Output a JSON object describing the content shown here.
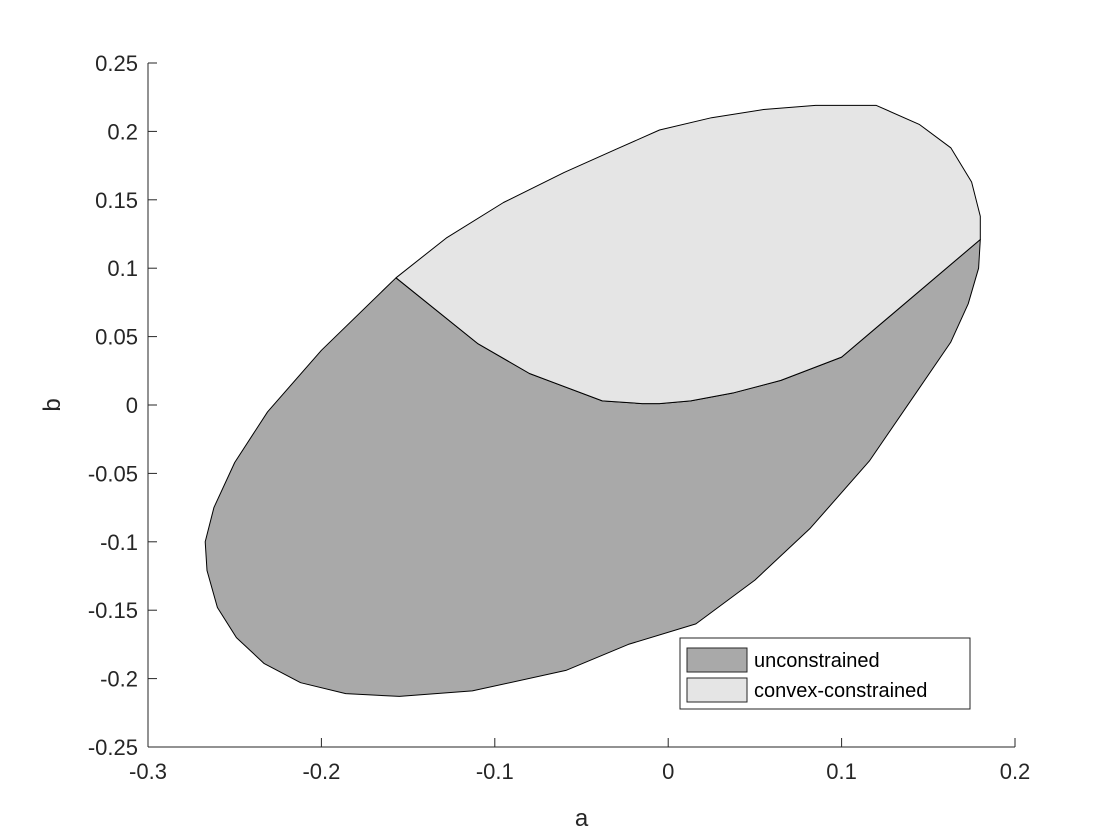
{
  "chart_data": {
    "type": "area",
    "title": "",
    "xlabel": "a",
    "ylabel": "b",
    "xlim": [
      -0.3,
      0.2
    ],
    "ylim": [
      -0.25,
      0.25
    ],
    "xticks": [
      -0.3,
      -0.2,
      -0.1,
      0,
      0.1,
      0.2
    ],
    "xtick_labels": [
      "-0.3",
      "-0.2",
      "-0.1",
      "0",
      "0.1",
      "0.2"
    ],
    "yticks": [
      -0.25,
      -0.2,
      -0.15,
      -0.1,
      -0.05,
      0,
      0.05,
      0.1,
      0.15,
      0.2,
      0.25
    ],
    "ytick_labels": [
      "-0.25",
      "-0.2",
      "-0.15",
      "-0.1",
      "-0.05",
      "0",
      "0.05",
      "0.1",
      "0.15",
      "0.2",
      "0.25"
    ],
    "grid": false,
    "legend_position": "bottom-right",
    "series": [
      {
        "name": "unconstrained",
        "color": "#a9a9a9",
        "x": [
          -0.157,
          -0.2,
          -0.231,
          -0.25,
          -0.262,
          -0.267,
          -0.266,
          -0.26,
          -0.249,
          -0.233,
          -0.212,
          -0.186,
          -0.155,
          -0.113,
          -0.059,
          -0.023,
          0.016,
          0.05,
          0.082,
          0.116,
          0.143,
          0.163,
          0.173,
          0.179,
          0.18,
          0.1,
          0.065,
          0.038,
          0.013,
          -0.005,
          -0.015,
          -0.038,
          -0.08,
          -0.11,
          -0.157
        ],
        "y": [
          0.093,
          0.04,
          -0.005,
          -0.042,
          -0.075,
          -0.1,
          -0.121,
          -0.148,
          -0.17,
          -0.189,
          -0.203,
          -0.211,
          -0.213,
          -0.209,
          -0.194,
          -0.175,
          -0.16,
          -0.128,
          -0.09,
          -0.041,
          0.009,
          0.046,
          0.074,
          0.1,
          0.121,
          0.035,
          0.018,
          0.009,
          0.003,
          0.001,
          0.001,
          0.003,
          0.023,
          0.045,
          0.093
        ]
      },
      {
        "name": "convex-constrained",
        "color": "#e5e5e5",
        "x": [
          -0.157,
          -0.128,
          -0.095,
          -0.06,
          -0.03,
          -0.005,
          0.025,
          0.055,
          0.085,
          0.12,
          0.145,
          0.163,
          0.175,
          0.18,
          0.18,
          0.1,
          0.065,
          0.038,
          0.013,
          -0.005,
          -0.015,
          -0.038,
          -0.08,
          -0.11,
          -0.157
        ],
        "y": [
          0.093,
          0.122,
          0.148,
          0.17,
          0.187,
          0.201,
          0.21,
          0.216,
          0.219,
          0.219,
          0.205,
          0.188,
          0.163,
          0.138,
          0.121,
          0.035,
          0.018,
          0.009,
          0.003,
          0.001,
          0.001,
          0.003,
          0.023,
          0.045,
          0.093
        ]
      }
    ]
  }
}
